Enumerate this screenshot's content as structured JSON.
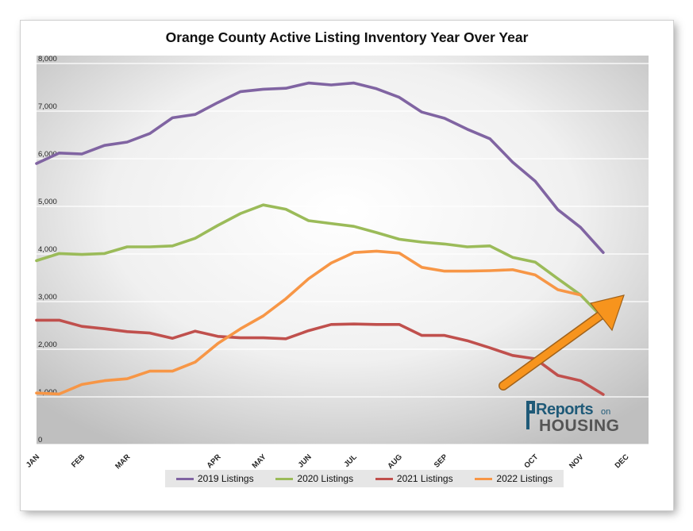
{
  "chart_data": {
    "type": "line",
    "title": "Orange County Active Listing Inventory Year Over Year",
    "xlabel": "",
    "ylabel": "",
    "ylim": [
      0,
      8000
    ],
    "yticks": [
      "0",
      "1,000",
      "2,000",
      "3,000",
      "4,000",
      "5,000",
      "6,000",
      "7,000",
      "8,000"
    ],
    "month_labels": [
      "JAN",
      "FEB",
      "MAR",
      "APR",
      "MAY",
      "JUN",
      "JUL",
      "AUG",
      "SEP",
      "OCT",
      "NOV",
      "DEC"
    ],
    "month_label_index": [
      0,
      2,
      4,
      8,
      10,
      12,
      14,
      16,
      18,
      22,
      24,
      26
    ],
    "point_count": 28,
    "grid": true,
    "legend_position": "bottom",
    "series": [
      {
        "name": "2019 Listings",
        "color": "#8064a2",
        "values": [
          5900,
          6120,
          6100,
          6280,
          6350,
          6530,
          6860,
          6930,
          7180,
          7410,
          7460,
          7480,
          7590,
          7550,
          7590,
          7470,
          7290,
          6980,
          6850,
          6620,
          6420,
          5930,
          5530,
          4930,
          4560,
          4030
        ]
      },
      {
        "name": "2020 Listings",
        "color": "#9bbb59",
        "values": [
          3860,
          4010,
          3990,
          4010,
          4150,
          4150,
          4170,
          4330,
          4600,
          4850,
          5030,
          4940,
          4700,
          4640,
          4580,
          4450,
          4310,
          4250,
          4210,
          4150,
          4170,
          3930,
          3830,
          3480,
          3140,
          2650
        ]
      },
      {
        "name": "2021 Listings",
        "color": "#c0504d",
        "values": [
          2610,
          2610,
          2480,
          2430,
          2370,
          2340,
          2230,
          2380,
          2270,
          2240,
          2240,
          2220,
          2390,
          2520,
          2530,
          2520,
          2520,
          2290,
          2290,
          2180,
          2030,
          1870,
          1800,
          1450,
          1340,
          1050
        ]
      },
      {
        "name": "2022 Listings",
        "color": "#f79646",
        "values": [
          1080,
          1060,
          1260,
          1340,
          1380,
          1540,
          1540,
          1730,
          2120,
          2430,
          2700,
          3060,
          3480,
          3810,
          4030,
          4060,
          4020,
          3720,
          3640,
          3640,
          3650,
          3670,
          3560,
          3250,
          3140
        ]
      }
    ],
    "annotations": [
      {
        "type": "arrow",
        "color": "#f7941d",
        "direction": "up-right"
      }
    ]
  },
  "logo": {
    "line1": "Reports",
    "line1b": "on",
    "line2": "HOUSING"
  }
}
